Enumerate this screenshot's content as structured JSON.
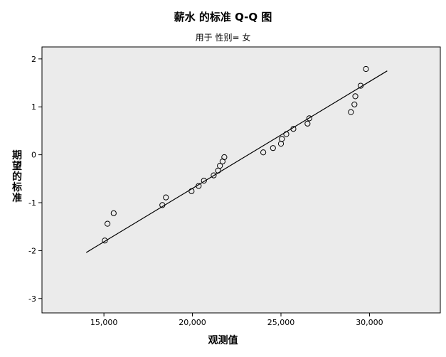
{
  "chart_data": {
    "type": "scatter",
    "title": "薪水 的标准 Q-Q 图",
    "subtitle": "用于 性别= 女",
    "xlabel": "观测值",
    "ylabel": "期望的标准",
    "xlim": [
      11500,
      34000
    ],
    "ylim": [
      -3.3,
      2.25
    ],
    "x_ticks": [
      15000,
      20000,
      25000,
      30000
    ],
    "x_tick_labels": [
      "15,000",
      "20,000",
      "25,000",
      "30,000"
    ],
    "y_ticks": [
      -3,
      -2,
      -1,
      0,
      1,
      2
    ],
    "y_tick_labels": [
      "-3",
      "-2",
      "-1",
      "0",
      "1",
      "2"
    ],
    "grid": false,
    "background": "#ebebeb",
    "points": [
      {
        "x": 15050,
        "y": -1.79
      },
      {
        "x": 15200,
        "y": -1.44
      },
      {
        "x": 15550,
        "y": -1.22
      },
      {
        "x": 18300,
        "y": -1.05
      },
      {
        "x": 18500,
        "y": -0.89
      },
      {
        "x": 19950,
        "y": -0.76
      },
      {
        "x": 20350,
        "y": -0.65
      },
      {
        "x": 20650,
        "y": -0.54
      },
      {
        "x": 21200,
        "y": -0.43
      },
      {
        "x": 21450,
        "y": -0.33
      },
      {
        "x": 21550,
        "y": -0.23
      },
      {
        "x": 21700,
        "y": -0.14
      },
      {
        "x": 21800,
        "y": -0.05
      },
      {
        "x": 24000,
        "y": 0.05
      },
      {
        "x": 24550,
        "y": 0.14
      },
      {
        "x": 25000,
        "y": 0.23
      },
      {
        "x": 25050,
        "y": 0.33
      },
      {
        "x": 25300,
        "y": 0.43
      },
      {
        "x": 25700,
        "y": 0.54
      },
      {
        "x": 26500,
        "y": 0.65
      },
      {
        "x": 26600,
        "y": 0.76
      },
      {
        "x": 28950,
        "y": 0.89
      },
      {
        "x": 29150,
        "y": 1.05
      },
      {
        "x": 29200,
        "y": 1.22
      },
      {
        "x": 29500,
        "y": 1.44
      },
      {
        "x": 29800,
        "y": 1.79
      }
    ],
    "reference_line": [
      {
        "x": 14000,
        "y": -2.04
      },
      {
        "x": 31000,
        "y": 1.75
      }
    ]
  }
}
